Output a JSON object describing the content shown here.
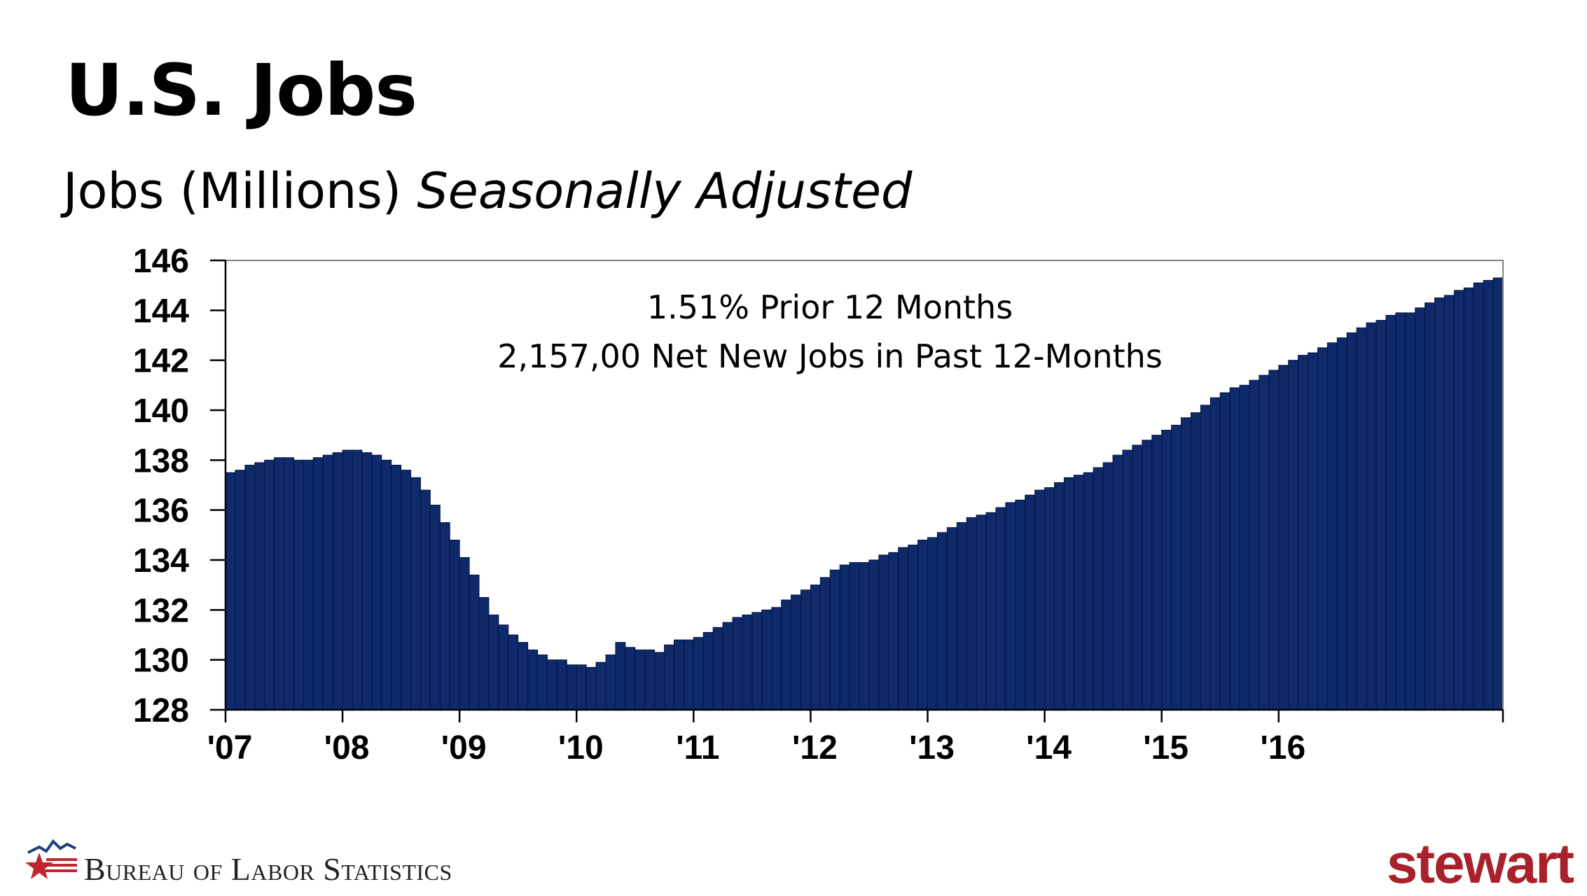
{
  "slide": {
    "title": "U.S. Jobs",
    "subtitle_main": "Jobs (Millions)",
    "subtitle_italic": "Seasonally Adjusted",
    "annotation_line1": "1.51%  Prior 12 Months",
    "annotation_line2": "2,157,00 Net New Jobs in Past 12-Months",
    "source_logo_text": "Bureau of Labor Statistics",
    "brand_logo_text": "stewart"
  },
  "colors": {
    "bar_fill": "#0e2a6b",
    "bar_edge": "#06163e",
    "brand_red": "#a8212b",
    "bls_red": "#c0262d",
    "bls_blue": "#1f3f7a"
  },
  "chart_data": {
    "type": "bar",
    "ylim": [
      128,
      146
    ],
    "y_ticks": [
      "128",
      "130",
      "132",
      "134",
      "136",
      "138",
      "140",
      "142",
      "144",
      "146"
    ],
    "x_tick_labels": [
      "'07",
      "'08",
      "'09",
      "'10",
      "'11",
      "'12",
      "'13",
      "'14",
      "'15",
      "'16"
    ],
    "grid": false,
    "values": [
      137.5,
      137.6,
      137.8,
      137.9,
      138.0,
      138.1,
      138.1,
      138.0,
      138.0,
      138.1,
      138.2,
      138.3,
      138.4,
      138.4,
      138.3,
      138.2,
      138.0,
      137.8,
      137.6,
      137.3,
      136.8,
      136.2,
      135.5,
      134.8,
      134.1,
      133.4,
      132.5,
      131.8,
      131.4,
      131.0,
      130.7,
      130.4,
      130.2,
      130.0,
      130.0,
      129.8,
      129.8,
      129.7,
      129.9,
      130.2,
      130.7,
      130.5,
      130.4,
      130.4,
      130.3,
      130.6,
      130.8,
      130.8,
      130.9,
      131.1,
      131.3,
      131.5,
      131.7,
      131.8,
      131.9,
      132.0,
      132.1,
      132.4,
      132.6,
      132.8,
      133.0,
      133.3,
      133.6,
      133.8,
      133.9,
      133.9,
      134.0,
      134.2,
      134.3,
      134.5,
      134.6,
      134.8,
      134.9,
      135.1,
      135.3,
      135.5,
      135.7,
      135.8,
      135.9,
      136.1,
      136.3,
      136.4,
      136.6,
      136.8,
      136.9,
      137.1,
      137.3,
      137.4,
      137.5,
      137.7,
      137.9,
      138.2,
      138.4,
      138.6,
      138.8,
      139.0,
      139.2,
      139.4,
      139.7,
      139.9,
      140.2,
      140.5,
      140.7,
      140.9,
      141.0,
      141.2,
      141.4,
      141.6,
      141.8,
      142.0,
      142.2,
      142.3,
      142.5,
      142.7,
      142.9,
      143.1,
      143.3,
      143.5,
      143.6,
      143.8,
      143.9,
      143.9,
      144.1,
      144.3,
      144.5,
      144.6,
      144.8,
      144.9,
      145.1,
      145.2,
      145.3
    ]
  }
}
